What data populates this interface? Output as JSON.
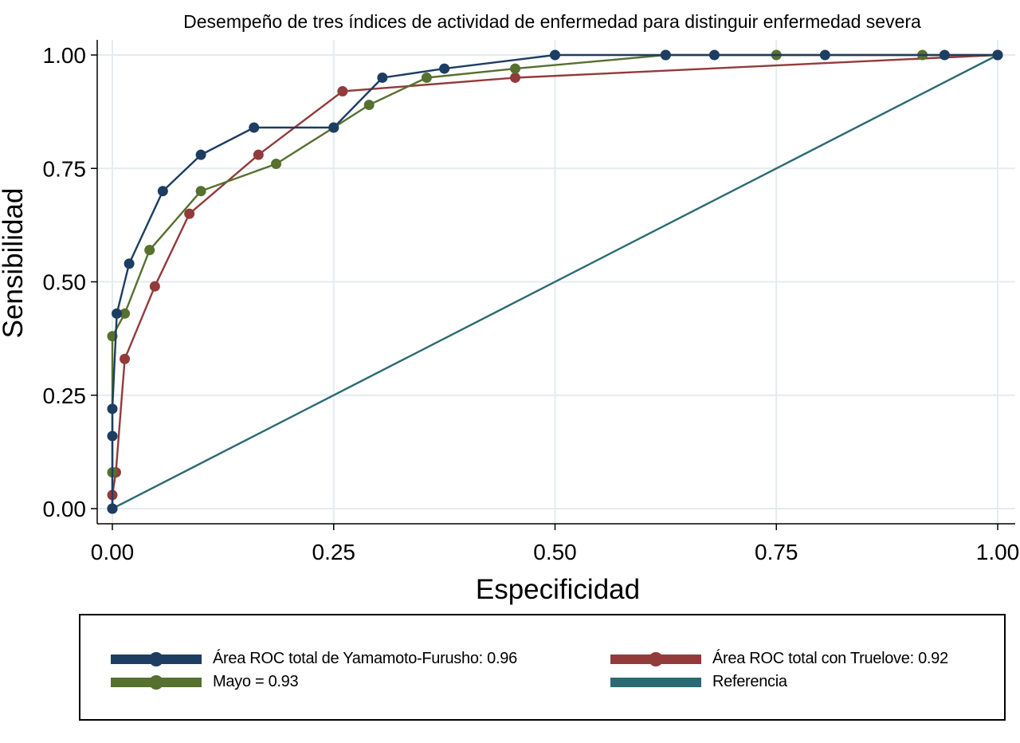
{
  "chart_data": {
    "type": "line",
    "title": "Desempeño de tres índices de actividad de enfermedad para distinguir enfermedad severa",
    "xlabel": "Especificidad",
    "ylabel": "Sensibilidad",
    "xlim": [
      0,
      1
    ],
    "ylim": [
      0,
      1
    ],
    "xticks": [
      "0.00",
      "0.25",
      "0.50",
      "0.75",
      "1.00"
    ],
    "yticks": [
      "0.00",
      "0.25",
      "0.50",
      "0.75",
      "1.00"
    ],
    "grid": true,
    "legend_position": "bottom",
    "series": [
      {
        "name": "Área ROC total de Yamamoto-Furusho: 0.96",
        "color": "#1d3d63",
        "markers": true,
        "x": [
          0,
          0,
          0,
          0.005,
          0.019,
          0.057,
          0.1,
          0.16,
          0.25,
          0.305,
          0.375,
          0.5,
          0.625,
          0.68,
          0.805,
          0.94,
          1
        ],
        "y": [
          0,
          0.16,
          0.22,
          0.43,
          0.54,
          0.7,
          0.78,
          0.84,
          0.84,
          0.95,
          0.97,
          1.0,
          1.0,
          1.0,
          1.0,
          1.0,
          1.0
        ]
      },
      {
        "name": "Área ROC total con Truelove: 0.92",
        "color": "#933a3a",
        "markers": true,
        "x": [
          0,
          0,
          0.004,
          0.014,
          0.048,
          0.087,
          0.165,
          0.26,
          0.455,
          1
        ],
        "y": [
          0,
          0.03,
          0.08,
          0.33,
          0.49,
          0.65,
          0.78,
          0.92,
          0.95,
          1.0
        ]
      },
      {
        "name": "Mayo = 0.93",
        "color": "#56702f",
        "markers": true,
        "x": [
          0,
          0,
          0,
          0.014,
          0.042,
          0.1,
          0.185,
          0.25,
          0.29,
          0.355,
          0.455,
          0.625,
          0.75,
          0.915,
          1
        ],
        "y": [
          0,
          0.08,
          0.38,
          0.43,
          0.57,
          0.7,
          0.76,
          0.84,
          0.89,
          0.95,
          0.97,
          1.0,
          1.0,
          1.0,
          1.0
        ]
      },
      {
        "name": "Referencia",
        "color": "#2a6a73",
        "markers": false,
        "x": [
          0,
          1
        ],
        "y": [
          0,
          1
        ]
      }
    ]
  },
  "legend": {
    "items": [
      {
        "label": "Área ROC total de Yamamoto-Furusho: 0.96",
        "color": "#1d3d63",
        "marker": true
      },
      {
        "label": "Mayo = 0.93",
        "color": "#56702f",
        "marker": true
      },
      {
        "label": "Área ROC total con Truelove: 0.92",
        "color": "#933a3a",
        "marker": true
      },
      {
        "label": "Referencia",
        "color": "#2a6a73",
        "marker": false
      }
    ]
  },
  "colors": {
    "grid": "#e3ecef",
    "axis": "#000000",
    "background": "#ffffff"
  }
}
